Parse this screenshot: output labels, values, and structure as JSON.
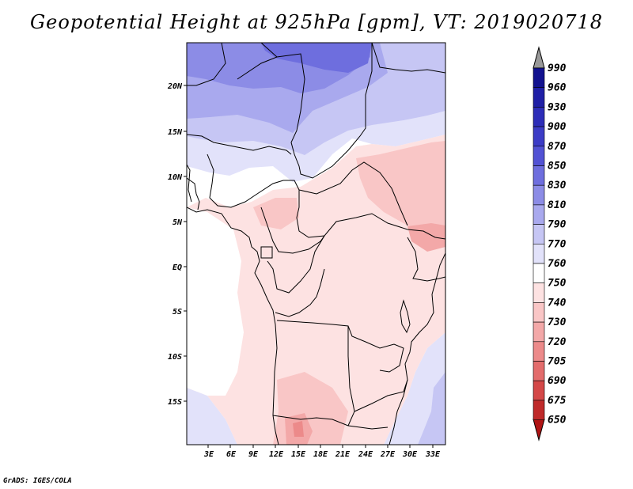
{
  "title": "Geopotential Height at 925hPa [gpm], VT: 2019020718",
  "credit": "GrADS: IGES/COLA",
  "map": {
    "lat_labels": [
      "20N",
      "15N",
      "10N",
      "5N",
      "EQ",
      "5S",
      "10S",
      "15S"
    ],
    "lon_labels": [
      "3E",
      "6E",
      "9E",
      "12E",
      "15E",
      "18E",
      "21E",
      "24E",
      "27E",
      "30E",
      "33E"
    ]
  },
  "colorbar": {
    "levels": [
      "990",
      "960",
      "930",
      "900",
      "870",
      "850",
      "830",
      "810",
      "790",
      "770",
      "760",
      "750",
      "740",
      "730",
      "720",
      "705",
      "690",
      "675",
      "650"
    ],
    "colors": [
      "#12128f",
      "#1f1fa6",
      "#2d2db8",
      "#3c3cc6",
      "#5252d4",
      "#6e6ede",
      "#8c8ce6",
      "#a9a9ee",
      "#c6c6f4",
      "#e2e2fa",
      "#ffffff",
      "#fde2e2",
      "#f9c6c6",
      "#f3a8a8",
      "#ec8a8a",
      "#e36c6c",
      "#d44848",
      "#bf2a2a",
      "#a61414",
      "#8c0a0a"
    ],
    "top_arrow_color": "#999999",
    "bottom_arrow_color": "#b01414"
  }
}
